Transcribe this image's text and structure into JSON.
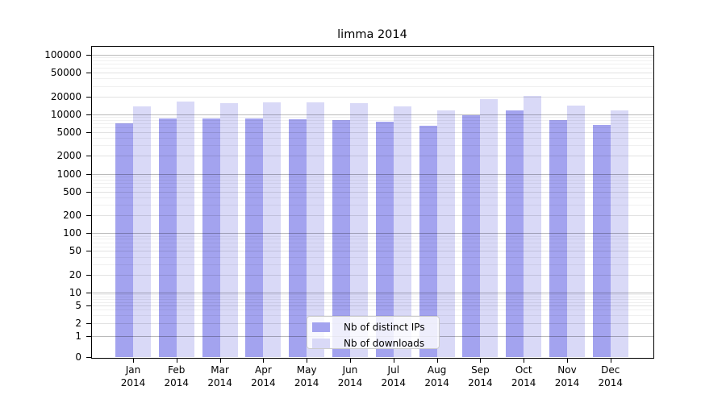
{
  "title": "limma 2014",
  "legend": {
    "items": [
      {
        "label": "Nb of distinct IPs",
        "color": "#a3a3ef"
      },
      {
        "label": "Nb of downloads",
        "color": "#d9d9f7"
      }
    ]
  },
  "months": [
    {
      "month": "Jan",
      "year": "2014"
    },
    {
      "month": "Feb",
      "year": "2014"
    },
    {
      "month": "Mar",
      "year": "2014"
    },
    {
      "month": "Apr",
      "year": "2014"
    },
    {
      "month": "May",
      "year": "2014"
    },
    {
      "month": "Jun",
      "year": "2014"
    },
    {
      "month": "Jul",
      "year": "2014"
    },
    {
      "month": "Aug",
      "year": "2014"
    },
    {
      "month": "Sep",
      "year": "2014"
    },
    {
      "month": "Oct",
      "year": "2014"
    },
    {
      "month": "Nov",
      "year": "2014"
    },
    {
      "month": "Dec",
      "year": "2014"
    }
  ],
  "y_tick_labels": [
    "100000",
    "50000",
    "20000",
    "10000",
    "5000",
    "2000",
    "1000",
    "500",
    "200",
    "100",
    "50",
    "20",
    "10",
    "5",
    "2",
    "1",
    "0"
  ],
  "colors": {
    "ips_bar": "#a3a3ef",
    "downloads_bar": "#d9d9f7",
    "grid_major": "#bdbdbd",
    "grid_mid": "#e2e2e2",
    "grid_minor": "#f0f0f0",
    "spine": "#000000",
    "background": "#ffffff"
  },
  "chart_data": {
    "type": "bar",
    "title": "limma 2014",
    "xlabel": "",
    "ylabel": "",
    "y_scale": "symlog",
    "ylim": [
      0,
      100000
    ],
    "grid": "horizontal major/mid/minor log gridlines",
    "legend_position": "inside bottom-center",
    "categories": [
      "Jan 2014",
      "Feb 2014",
      "Mar 2014",
      "Apr 2014",
      "May 2014",
      "Jun 2014",
      "Jul 2014",
      "Aug 2014",
      "Sep 2014",
      "Oct 2014",
      "Nov 2014",
      "Dec 2014"
    ],
    "y_ticks": [
      100000,
      50000,
      20000,
      10000,
      5000,
      2000,
      1000,
      500,
      200,
      100,
      50,
      20,
      10,
      5,
      2,
      1,
      0
    ],
    "series": [
      {
        "name": "Nb of distinct IPs",
        "color": "#a3a3ef",
        "values": [
          7000,
          8500,
          8500,
          8500,
          8300,
          8000,
          7500,
          6400,
          9700,
          11500,
          8000,
          6700
        ]
      },
      {
        "name": "Nb of downloads",
        "color": "#d9d9f7",
        "values": [
          13500,
          16500,
          15600,
          16000,
          16000,
          15600,
          13700,
          11700,
          17800,
          20500,
          14200,
          11700
        ]
      }
    ]
  }
}
